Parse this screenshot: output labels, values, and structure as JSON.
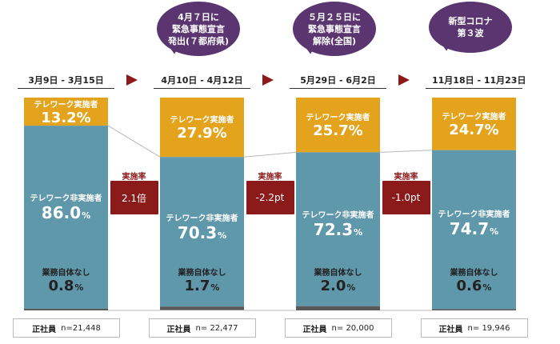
{
  "colors": {
    "telework": "#e3a31d",
    "non_telework": "#5f97ab",
    "no_work": "#595959",
    "accent": "#8b1a1a",
    "bubble": "#5a3570",
    "connector": "#b8b8b8"
  },
  "events": [
    {
      "lines": [
        "4月７日に",
        "緊急事態宣言",
        "発出(７都府県)"
      ]
    },
    {
      "lines": [
        "５月２５日に",
        "緊急事態宣言",
        "解除(全国)"
      ]
    },
    {
      "lines": [
        "新型コロナ",
        "第３波"
      ]
    }
  ],
  "changes": [
    {
      "title": "実施率",
      "value": "2.1倍"
    },
    {
      "title": "実施率",
      "value": "-2.2pt"
    },
    {
      "title": "実施率",
      "value": "-1.0pt"
    }
  ],
  "chart_data": {
    "type": "bar",
    "stacked": true,
    "categories": [
      "3月9日 - 3月15日",
      "4月10日 - 4月12日",
      "5月29日 - 6月2日",
      "11月18日 - 11月23日"
    ],
    "series": [
      {
        "name": "テレワーク実施者",
        "values": [
          13.2,
          27.9,
          25.7,
          24.7
        ],
        "labels": [
          "13.2%",
          "27.9%",
          "25.7%",
          "24.7%"
        ]
      },
      {
        "name": "テレワーク非実施者",
        "values": [
          86.0,
          70.3,
          72.3,
          74.7
        ],
        "labels": [
          "86.0",
          "70.3",
          "72.3",
          "74.7"
        ]
      },
      {
        "name": "業務自体なし",
        "values": [
          0.8,
          1.7,
          2.0,
          0.6
        ],
        "labels": [
          "0.8",
          "1.7",
          "2.0",
          "0.6"
        ]
      }
    ],
    "unit": "%",
    "samples": {
      "label": "正社員",
      "values": [
        "n=21,448",
        "n= 22,477",
        "n= 20,000",
        "n= 19,946"
      ]
    },
    "ylim": [
      0,
      100
    ]
  }
}
